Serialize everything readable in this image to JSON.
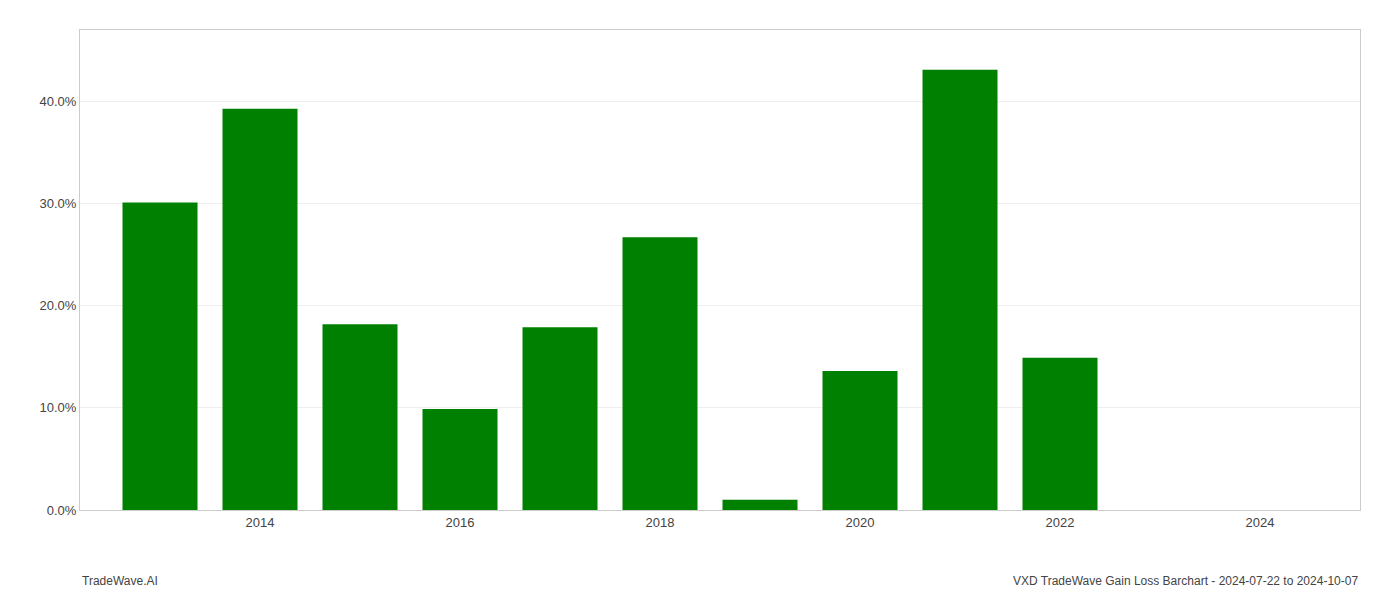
{
  "chart_data": {
    "type": "bar",
    "x": [
      2013,
      2014,
      2015,
      2016,
      2017,
      2018,
      2019,
      2020,
      2021,
      2022,
      2023
    ],
    "values": [
      0.301,
      0.393,
      0.182,
      0.099,
      0.179,
      0.267,
      0.01,
      0.136,
      0.431,
      0.149,
      0.0
    ],
    "color": "#008000",
    "xlim": [
      2012.2,
      2025.0
    ],
    "xticks": [
      2014,
      2016,
      2018,
      2020,
      2022,
      2024
    ],
    "ylim": [
      0,
      0.47
    ],
    "yticks": [
      {
        "value": 0.0,
        "label": "0.0%"
      },
      {
        "value": 0.1,
        "label": "10.0%"
      },
      {
        "value": 0.2,
        "label": "20.0%"
      },
      {
        "value": 0.3,
        "label": "30.0%"
      },
      {
        "value": 0.4,
        "label": "40.0%"
      }
    ],
    "grid": true,
    "annotations": [
      "TradeWave.AI",
      "VXD TradeWave Gain Loss Barchart - 2024-07-22 to 2024-10-07"
    ]
  }
}
